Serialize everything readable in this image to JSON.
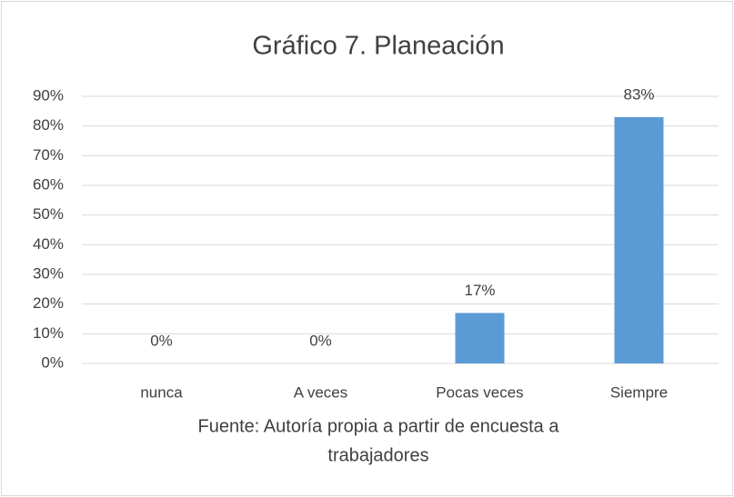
{
  "chart_data": {
    "type": "bar",
    "title": "Gráfico 7. Planeación",
    "categories": [
      "nunca",
      "A veces",
      "Pocas veces",
      "Siempre"
    ],
    "values": [
      0,
      0,
      17,
      83
    ],
    "value_labels": [
      "0%",
      "0%",
      "17%",
      "83%"
    ],
    "color": "#5b9bd5",
    "ylim": [
      0,
      90
    ],
    "yticks": [
      {
        "value": 0,
        "label": "0%"
      },
      {
        "value": 10,
        "label": "10%"
      },
      {
        "value": 20,
        "label": "20%"
      },
      {
        "value": 30,
        "label": "30%"
      },
      {
        "value": 40,
        "label": "40%"
      },
      {
        "value": 50,
        "label": "50%"
      },
      {
        "value": 60,
        "label": "60%"
      },
      {
        "value": 70,
        "label": "70%"
      },
      {
        "value": 80,
        "label": "80%"
      },
      {
        "value": 90,
        "label": "90%"
      }
    ],
    "grid": true,
    "caption": [
      "Fuente: Autoría propia a partir de encuesta a",
      "trabajadores"
    ]
  }
}
